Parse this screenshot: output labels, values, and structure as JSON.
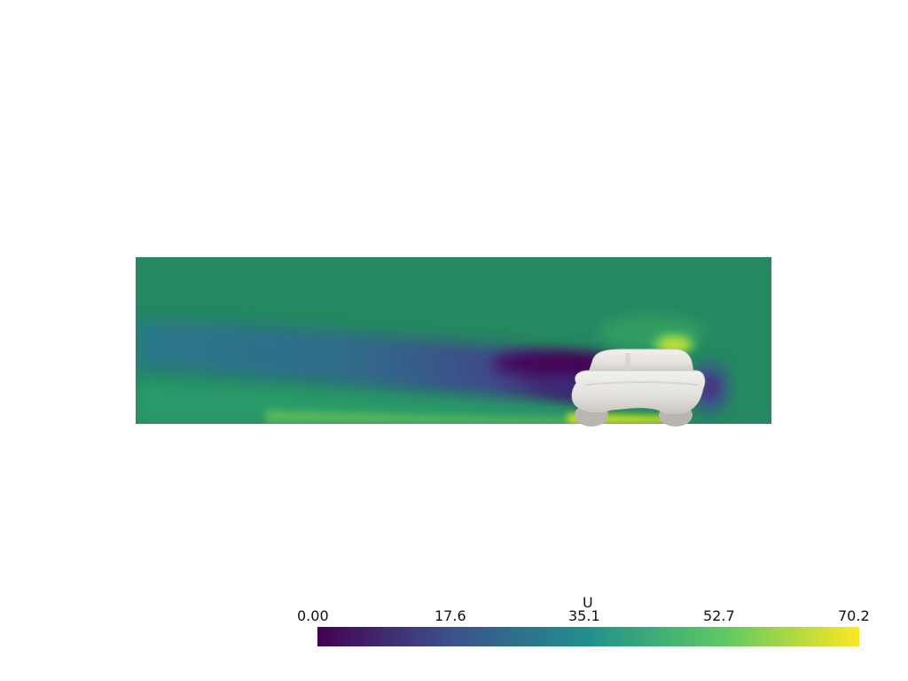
{
  "scene": {
    "type": "CFD slice visualization",
    "object": "car",
    "field": "U"
  },
  "scalar_bar": {
    "title": "U",
    "labels": [
      "0.00",
      "17.6",
      "35.1",
      "52.7",
      "70.2"
    ],
    "min": 0.0,
    "max": 70.2,
    "colormap": "viridis",
    "colors": [
      "#440154",
      "#3b528b",
      "#21908d",
      "#5dc962",
      "#fde725"
    ]
  }
}
